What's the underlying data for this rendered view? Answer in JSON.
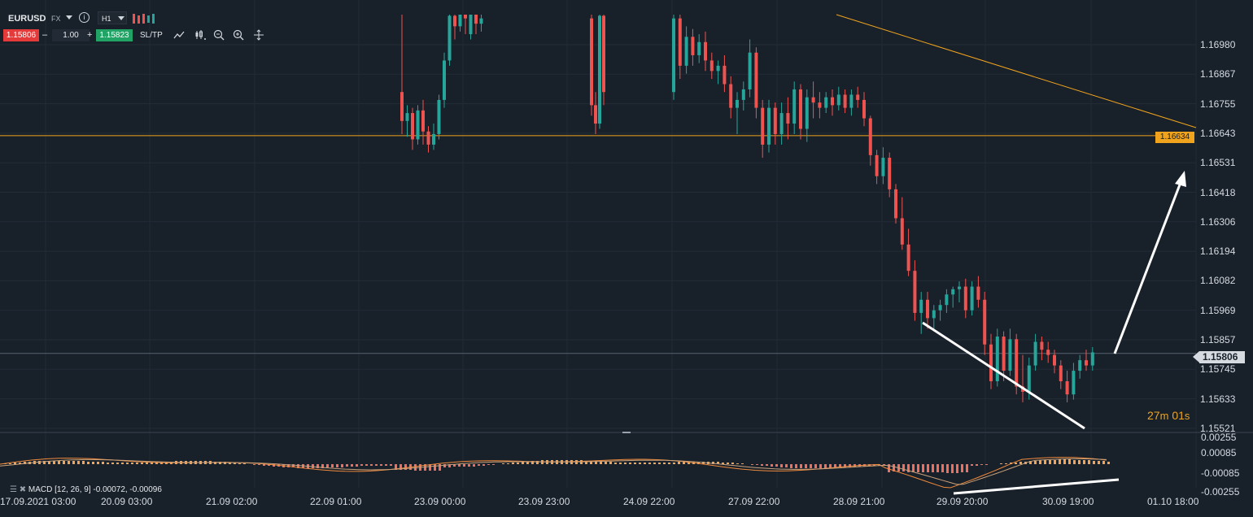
{
  "symbol": {
    "name": "EURUSD",
    "market": "FX",
    "timeframe": "H1"
  },
  "trade": {
    "sell_price": "1.15806",
    "quantity": "1.00",
    "buy_price": "1.15823",
    "sltp_label": "SL/TP",
    "minus": "–",
    "plus": "+"
  },
  "toolbar_icons": [
    "line-chart-icon",
    "candles-icon",
    "zoom-out-icon",
    "zoom-in-icon",
    "crosshair-icon"
  ],
  "price_axis": [
    "1.16980",
    "1.16867",
    "1.16755",
    "1.16643",
    "1.16531",
    "1.16418",
    "1.16306",
    "1.16194",
    "1.16082",
    "1.15969",
    "1.15857",
    "1.15745",
    "1.15633",
    "1.15521"
  ],
  "macd_axis": [
    "0.00255",
    "0.00085",
    "-0.00085",
    "-0.00255"
  ],
  "time_axis": [
    "17.09.2021 03:00",
    "20.09 03:00",
    "21.09 02:00",
    "22.09 01:00",
    "23.09 00:00",
    "23.09 23:00",
    "24.09 22:00",
    "27.09 22:00",
    "28.09 21:00",
    "29.09 20:00",
    "30.09 19:00",
    "01.10 18:00"
  ],
  "horizontal_level": {
    "value": "1.16634",
    "color": "#f0a41e"
  },
  "current_price": {
    "value": "1.15806"
  },
  "countdown": {
    "minutes": "27",
    "m": "m",
    "seconds": "01",
    "s": "s"
  },
  "macd": {
    "label": "MACD [12, 26, 9] -0.00072, -0.00096"
  },
  "colors": {
    "bullish": "#26a69a",
    "bearish": "#ef5350",
    "accent": "#f0a41e",
    "background": "#18202a"
  },
  "chart_data": {
    "type": "candlestick",
    "y_axis_range": [
      1.15521,
      1.17092
    ],
    "note_series": "approximate hourly OHLC traced from the figure",
    "candles": [
      {
        "t": 0,
        "o": 1.168,
        "h": 1.1716,
        "l": 1.1664,
        "c": 1.1669
      },
      {
        "t": 1,
        "o": 1.1669,
        "h": 1.1675,
        "l": 1.1663,
        "c": 1.1672
      },
      {
        "t": 2,
        "o": 1.1672,
        "h": 1.1674,
        "l": 1.1658,
        "c": 1.1662
      },
      {
        "t": 3,
        "o": 1.1662,
        "h": 1.1675,
        "l": 1.166,
        "c": 1.1673
      },
      {
        "t": 4,
        "o": 1.1673,
        "h": 1.1677,
        "l": 1.166,
        "c": 1.1665
      },
      {
        "t": 5,
        "o": 1.1665,
        "h": 1.1667,
        "l": 1.1657,
        "c": 1.166
      },
      {
        "t": 6,
        "o": 1.166,
        "h": 1.1668,
        "l": 1.1658,
        "c": 1.1664
      },
      {
        "t": 7,
        "o": 1.1664,
        "h": 1.1679,
        "l": 1.1662,
        "c": 1.1677
      },
      {
        "t": 8,
        "o": 1.1677,
        "h": 1.1695,
        "l": 1.1674,
        "c": 1.1692
      },
      {
        "t": 9,
        "o": 1.1692,
        "h": 1.1712,
        "l": 1.169,
        "c": 1.1709
      },
      {
        "t": 10,
        "o": 1.1709,
        "h": 1.1713,
        "l": 1.17,
        "c": 1.1705
      },
      {
        "t": 11,
        "o": 1.1705,
        "h": 1.1714,
        "l": 1.1703,
        "c": 1.1711
      },
      {
        "t": 12,
        "o": 1.1711,
        "h": 1.1713,
        "l": 1.1702,
        "c": 1.1708
      },
      {
        "t": 13,
        "o": 1.1702,
        "h": 1.1713,
        "l": 1.17,
        "c": 1.171
      },
      {
        "t": 14,
        "o": 1.171,
        "h": 1.1712,
        "l": 1.1702,
        "c": 1.1706
      },
      {
        "t": 15,
        "o": 1.1706,
        "h": 1.1711,
        "l": 1.1703,
        "c": 1.1708
      },
      {
        "t": 16,
        "o": 1.1708,
        "h": 1.1713,
        "l": 1.1671,
        "c": 1.1675
      },
      {
        "t": 17,
        "o": 1.1675,
        "h": 1.168,
        "l": 1.1664,
        "c": 1.1668
      },
      {
        "t": 18,
        "o": 1.1668,
        "h": 1.1712,
        "l": 1.1666,
        "c": 1.1709
      },
      {
        "t": 19,
        "o": 1.1709,
        "h": 1.1713,
        "l": 1.1675,
        "c": 1.168
      },
      {
        "t": 20,
        "o": 1.168,
        "h": 1.1712,
        "l": 1.1677,
        "c": 1.1708
      },
      {
        "t": 21,
        "o": 1.1708,
        "h": 1.171,
        "l": 1.1685,
        "c": 1.169
      },
      {
        "t": 22,
        "o": 1.169,
        "h": 1.1705,
        "l": 1.1687,
        "c": 1.1701
      },
      {
        "t": 23,
        "o": 1.1701,
        "h": 1.1704,
        "l": 1.169,
        "c": 1.1694
      },
      {
        "t": 24,
        "o": 1.1694,
        "h": 1.1702,
        "l": 1.1691,
        "c": 1.1699
      },
      {
        "t": 25,
        "o": 1.1699,
        "h": 1.1703,
        "l": 1.1688,
        "c": 1.1692
      },
      {
        "t": 26,
        "o": 1.1692,
        "h": 1.1695,
        "l": 1.1685,
        "c": 1.1688
      },
      {
        "t": 27,
        "o": 1.1688,
        "h": 1.1692,
        "l": 1.1683,
        "c": 1.169
      },
      {
        "t": 28,
        "o": 1.169,
        "h": 1.1694,
        "l": 1.168,
        "c": 1.1683
      },
      {
        "t": 29,
        "o": 1.1683,
        "h": 1.1686,
        "l": 1.167,
        "c": 1.1674
      },
      {
        "t": 30,
        "o": 1.1674,
        "h": 1.168,
        "l": 1.1664,
        "c": 1.1677
      },
      {
        "t": 31,
        "o": 1.1677,
        "h": 1.1684,
        "l": 1.1673,
        "c": 1.1681
      },
      {
        "t": 32,
        "o": 1.1681,
        "h": 1.17,
        "l": 1.1678,
        "c": 1.1695
      },
      {
        "t": 33,
        "o": 1.1695,
        "h": 1.1697,
        "l": 1.167,
        "c": 1.1674
      },
      {
        "t": 34,
        "o": 1.1674,
        "h": 1.1677,
        "l": 1.1655,
        "c": 1.166
      },
      {
        "t": 35,
        "o": 1.166,
        "h": 1.1677,
        "l": 1.1657,
        "c": 1.1674
      },
      {
        "t": 36,
        "o": 1.1674,
        "h": 1.1676,
        "l": 1.166,
        "c": 1.1664
      },
      {
        "t": 37,
        "o": 1.1664,
        "h": 1.1676,
        "l": 1.166,
        "c": 1.1672
      },
      {
        "t": 38,
        "o": 1.1672,
        "h": 1.1678,
        "l": 1.1662,
        "c": 1.1668
      },
      {
        "t": 39,
        "o": 1.1668,
        "h": 1.1684,
        "l": 1.1664,
        "c": 1.1681
      },
      {
        "t": 40,
        "o": 1.1681,
        "h": 1.1683,
        "l": 1.1662,
        "c": 1.1666
      },
      {
        "t": 41,
        "o": 1.1666,
        "h": 1.1681,
        "l": 1.1661,
        "c": 1.1678
      },
      {
        "t": 42,
        "o": 1.1678,
        "h": 1.1684,
        "l": 1.167,
        "c": 1.1676
      },
      {
        "t": 43,
        "o": 1.1676,
        "h": 1.168,
        "l": 1.167,
        "c": 1.1674
      },
      {
        "t": 44,
        "o": 1.1674,
        "h": 1.168,
        "l": 1.1672,
        "c": 1.1678
      },
      {
        "t": 45,
        "o": 1.1678,
        "h": 1.1681,
        "l": 1.1671,
        "c": 1.1675
      },
      {
        "t": 46,
        "o": 1.1675,
        "h": 1.1682,
        "l": 1.1673,
        "c": 1.1679
      },
      {
        "t": 47,
        "o": 1.1679,
        "h": 1.1681,
        "l": 1.1672,
        "c": 1.1674
      },
      {
        "t": 48,
        "o": 1.1674,
        "h": 1.1681,
        "l": 1.1671,
        "c": 1.1679
      },
      {
        "t": 49,
        "o": 1.1679,
        "h": 1.1682,
        "l": 1.1674,
        "c": 1.1677
      },
      {
        "t": 50,
        "o": 1.1677,
        "h": 1.168,
        "l": 1.1667,
        "c": 1.167
      },
      {
        "t": 51,
        "o": 1.167,
        "h": 1.1671,
        "l": 1.1652,
        "c": 1.1656
      },
      {
        "t": 52,
        "o": 1.1656,
        "h": 1.1658,
        "l": 1.1645,
        "c": 1.1648
      },
      {
        "t": 53,
        "o": 1.1648,
        "h": 1.1659,
        "l": 1.1645,
        "c": 1.1655
      },
      {
        "t": 54,
        "o": 1.1655,
        "h": 1.1657,
        "l": 1.164,
        "c": 1.1643
      },
      {
        "t": 55,
        "o": 1.1643,
        "h": 1.1645,
        "l": 1.163,
        "c": 1.1632
      },
      {
        "t": 56,
        "o": 1.1632,
        "h": 1.164,
        "l": 1.162,
        "c": 1.1622
      },
      {
        "t": 57,
        "o": 1.1622,
        "h": 1.1628,
        "l": 1.161,
        "c": 1.1612
      },
      {
        "t": 58,
        "o": 1.1612,
        "h": 1.1616,
        "l": 1.1593,
        "c": 1.1596
      },
      {
        "t": 59,
        "o": 1.1596,
        "h": 1.1604,
        "l": 1.1588,
        "c": 1.1601
      },
      {
        "t": 60,
        "o": 1.1601,
        "h": 1.1604,
        "l": 1.159,
        "c": 1.1594
      },
      {
        "t": 61,
        "o": 1.1594,
        "h": 1.1599,
        "l": 1.1589,
        "c": 1.1597
      },
      {
        "t": 62,
        "o": 1.1597,
        "h": 1.1601,
        "l": 1.1593,
        "c": 1.1599
      },
      {
        "t": 63,
        "o": 1.1599,
        "h": 1.1605,
        "l": 1.1596,
        "c": 1.1603
      },
      {
        "t": 64,
        "o": 1.1603,
        "h": 1.1606,
        "l": 1.1598,
        "c": 1.1605
      },
      {
        "t": 65,
        "o": 1.1605,
        "h": 1.1608,
        "l": 1.16,
        "c": 1.1606
      },
      {
        "t": 66,
        "o": 1.1606,
        "h": 1.1609,
        "l": 1.1594,
        "c": 1.1597
      },
      {
        "t": 67,
        "o": 1.1597,
        "h": 1.1608,
        "l": 1.1595,
        "c": 1.1606
      },
      {
        "t": 68,
        "o": 1.1606,
        "h": 1.161,
        "l": 1.1598,
        "c": 1.1601
      },
      {
        "t": 69,
        "o": 1.1601,
        "h": 1.1604,
        "l": 1.158,
        "c": 1.1584
      },
      {
        "t": 70,
        "o": 1.1584,
        "h": 1.1588,
        "l": 1.1567,
        "c": 1.157
      },
      {
        "t": 71,
        "o": 1.157,
        "h": 1.159,
        "l": 1.1568,
        "c": 1.1587
      },
      {
        "t": 72,
        "o": 1.1587,
        "h": 1.1589,
        "l": 1.157,
        "c": 1.1574
      },
      {
        "t": 73,
        "o": 1.1574,
        "h": 1.159,
        "l": 1.1572,
        "c": 1.1586
      },
      {
        "t": 74,
        "o": 1.1586,
        "h": 1.1588,
        "l": 1.1565,
        "c": 1.1568
      },
      {
        "t": 75,
        "o": 1.1568,
        "h": 1.158,
        "l": 1.1562,
        "c": 1.1566
      },
      {
        "t": 76,
        "o": 1.1566,
        "h": 1.1579,
        "l": 1.1563,
        "c": 1.1576
      },
      {
        "t": 77,
        "o": 1.1576,
        "h": 1.1588,
        "l": 1.1574,
        "c": 1.1585
      },
      {
        "t": 78,
        "o": 1.1585,
        "h": 1.1587,
        "l": 1.1578,
        "c": 1.1582
      },
      {
        "t": 79,
        "o": 1.1582,
        "h": 1.1585,
        "l": 1.1577,
        "c": 1.158
      },
      {
        "t": 80,
        "o": 1.158,
        "h": 1.1582,
        "l": 1.1573,
        "c": 1.1576
      },
      {
        "t": 81,
        "o": 1.1576,
        "h": 1.1578,
        "l": 1.1567,
        "c": 1.157
      },
      {
        "t": 82,
        "o": 1.157,
        "h": 1.1574,
        "l": 1.1562,
        "c": 1.1565
      },
      {
        "t": 83,
        "o": 1.1565,
        "h": 1.1577,
        "l": 1.1563,
        "c": 1.1574
      },
      {
        "t": 84,
        "o": 1.1574,
        "h": 1.158,
        "l": 1.1571,
        "c": 1.1578
      },
      {
        "t": 85,
        "o": 1.1578,
        "h": 1.1582,
        "l": 1.1574,
        "c": 1.1576
      },
      {
        "t": 86,
        "o": 1.1576,
        "h": 1.1583,
        "l": 1.1574,
        "c": 1.1581
      }
    ]
  }
}
